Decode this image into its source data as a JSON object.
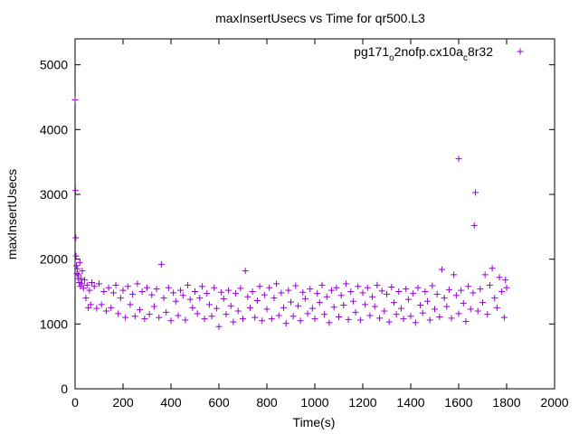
{
  "chart_data": {
    "type": "scatter",
    "title": "maxInsertUsecs vs Time for qr500.L3",
    "xlabel": "Time(s)",
    "ylabel": "maxInsertUsecs",
    "xlim": [
      0,
      2000
    ],
    "ylim": [
      0,
      5400
    ],
    "x_ticks": [
      "0",
      "200",
      "400",
      "600",
      "800",
      "1000",
      "1200",
      "1400",
      "1600",
      "1800",
      "2000"
    ],
    "y_ticks": [
      "0",
      "1000",
      "2000",
      "3000",
      "4000",
      "5000"
    ],
    "x_tick_values": [
      0,
      200,
      400,
      600,
      800,
      1000,
      1200,
      1400,
      1600,
      1800,
      2000
    ],
    "y_tick_values": [
      0,
      1000,
      2000,
      3000,
      4000,
      5000
    ],
    "grid": false,
    "legend_position": "top-right",
    "marker": "+",
    "series": [
      {
        "legend_main": "pg171",
        "legend_sub1": "o",
        "legend_mid": "2nofp.cx10a",
        "legend_sub2": "c",
        "legend_end": "8r32",
        "color": "#9400d3",
        "points": [
          [
            0,
            4460
          ],
          [
            2,
            3060
          ],
          [
            3,
            2330
          ],
          [
            4,
            2050
          ],
          [
            6,
            1900
          ],
          [
            8,
            1780
          ],
          [
            10,
            1850
          ],
          [
            12,
            1700
          ],
          [
            15,
            1760
          ],
          [
            18,
            1640
          ],
          [
            20,
            1950
          ],
          [
            22,
            1580
          ],
          [
            25,
            1700
          ],
          [
            28,
            1620
          ],
          [
            30,
            1820
          ],
          [
            35,
            1550
          ],
          [
            40,
            1680
          ],
          [
            45,
            1400
          ],
          [
            50,
            1600
          ],
          [
            55,
            1250
          ],
          [
            60,
            1520
          ],
          [
            65,
            1300
          ],
          [
            70,
            1640
          ],
          [
            80,
            1580
          ],
          [
            90,
            1240
          ],
          [
            100,
            1620
          ],
          [
            110,
            1300
          ],
          [
            120,
            1500
          ],
          [
            130,
            1200
          ],
          [
            140,
            1560
          ],
          [
            150,
            1250
          ],
          [
            160,
            1480
          ],
          [
            170,
            1600
          ],
          [
            180,
            1160
          ],
          [
            190,
            1400
          ],
          [
            200,
            1520
          ],
          [
            210,
            1100
          ],
          [
            220,
            1580
          ],
          [
            230,
            1300
          ],
          [
            240,
            1460
          ],
          [
            250,
            1120
          ],
          [
            260,
            1620
          ],
          [
            270,
            1220
          ],
          [
            280,
            1500
          ],
          [
            290,
            1080
          ],
          [
            300,
            1560
          ],
          [
            310,
            1150
          ],
          [
            320,
            1450
          ],
          [
            330,
            1270
          ],
          [
            340,
            1540
          ],
          [
            350,
            1100
          ],
          [
            360,
            1920
          ],
          [
            370,
            1400
          ],
          [
            380,
            1180
          ],
          [
            390,
            1560
          ],
          [
            400,
            1050
          ],
          [
            410,
            1480
          ],
          [
            420,
            1350
          ],
          [
            430,
            1130
          ],
          [
            440,
            1520
          ],
          [
            450,
            1440
          ],
          [
            460,
            1060
          ],
          [
            470,
            1600
          ],
          [
            480,
            1380
          ],
          [
            490,
            1250
          ],
          [
            500,
            1500
          ],
          [
            510,
            1160
          ],
          [
            520,
            1400
          ],
          [
            530,
            1580
          ],
          [
            540,
            1080
          ],
          [
            550,
            1470
          ],
          [
            560,
            1300
          ],
          [
            570,
            1120
          ],
          [
            580,
            1560
          ],
          [
            590,
            1240
          ],
          [
            600,
            960
          ],
          [
            610,
            1490
          ],
          [
            620,
            1390
          ],
          [
            630,
            1150
          ],
          [
            640,
            1520
          ],
          [
            650,
            1280
          ],
          [
            660,
            1030
          ],
          [
            670,
            1470
          ],
          [
            680,
            1200
          ],
          [
            690,
            1550
          ],
          [
            700,
            1080
          ],
          [
            710,
            1820
          ],
          [
            720,
            1420
          ],
          [
            730,
            1250
          ],
          [
            740,
            1500
          ],
          [
            750,
            1100
          ],
          [
            760,
            1360
          ],
          [
            770,
            1580
          ],
          [
            780,
            1050
          ],
          [
            790,
            1450
          ],
          [
            800,
            1230
          ],
          [
            810,
            1560
          ],
          [
            820,
            1080
          ],
          [
            830,
            1400
          ],
          [
            840,
            1620
          ],
          [
            850,
            1130
          ],
          [
            860,
            1480
          ],
          [
            870,
            1250
          ],
          [
            880,
            1010
          ],
          [
            890,
            1520
          ],
          [
            900,
            1340
          ],
          [
            910,
            1120
          ],
          [
            920,
            1590
          ],
          [
            930,
            1280
          ],
          [
            940,
            1050
          ],
          [
            950,
            1490
          ],
          [
            960,
            1390
          ],
          [
            970,
            1160
          ],
          [
            980,
            1540
          ],
          [
            990,
            1240
          ],
          [
            1000,
            1080
          ],
          [
            1010,
            1470
          ],
          [
            1020,
            1330
          ],
          [
            1030,
            1600
          ],
          [
            1040,
            1150
          ],
          [
            1050,
            1420
          ],
          [
            1060,
            1020
          ],
          [
            1070,
            1520
          ],
          [
            1080,
            1260
          ],
          [
            1090,
            1560
          ],
          [
            1100,
            1110
          ],
          [
            1110,
            1440
          ],
          [
            1120,
            1290
          ],
          [
            1130,
            1620
          ],
          [
            1140,
            1070
          ],
          [
            1150,
            1500
          ],
          [
            1160,
            1350
          ],
          [
            1170,
            1180
          ],
          [
            1180,
            1580
          ],
          [
            1190,
            1060
          ],
          [
            1200,
            1480
          ],
          [
            1210,
            1300
          ],
          [
            1220,
            1560
          ],
          [
            1230,
            1130
          ],
          [
            1240,
            1420
          ],
          [
            1250,
            1270
          ],
          [
            1260,
            1600
          ],
          [
            1270,
            1090
          ],
          [
            1280,
            1510
          ],
          [
            1290,
            1200
          ],
          [
            1300,
            1460
          ],
          [
            1310,
            1030
          ],
          [
            1320,
            1570
          ],
          [
            1330,
            1330
          ],
          [
            1340,
            1150
          ],
          [
            1350,
            1500
          ],
          [
            1360,
            1240
          ],
          [
            1370,
            1080
          ],
          [
            1380,
            1540
          ],
          [
            1390,
            1380
          ],
          [
            1400,
            1120
          ],
          [
            1410,
            1470
          ],
          [
            1420,
            1020
          ],
          [
            1430,
            1560
          ],
          [
            1440,
            1290
          ],
          [
            1450,
            1170
          ],
          [
            1460,
            1500
          ],
          [
            1470,
            1350
          ],
          [
            1480,
            1060
          ],
          [
            1490,
            1590
          ],
          [
            1500,
            1230
          ],
          [
            1510,
            1460
          ],
          [
            1520,
            1110
          ],
          [
            1530,
            1840
          ],
          [
            1540,
            1400
          ],
          [
            1550,
            1270
          ],
          [
            1560,
            1530
          ],
          [
            1570,
            1090
          ],
          [
            1580,
            1760
          ],
          [
            1590,
            1440
          ],
          [
            1600,
            3550
          ],
          [
            1600,
            1160
          ],
          [
            1610,
            1520
          ],
          [
            1620,
            1320
          ],
          [
            1630,
            1040
          ],
          [
            1640,
            1580
          ],
          [
            1650,
            1230
          ],
          [
            1660,
            1480
          ],
          [
            1670,
            3030
          ],
          [
            1665,
            2520
          ],
          [
            1680,
            1200
          ],
          [
            1690,
            1540
          ],
          [
            1700,
            1330
          ],
          [
            1710,
            1760
          ],
          [
            1720,
            1150
          ],
          [
            1730,
            1600
          ],
          [
            1740,
            1860
          ],
          [
            1750,
            1400
          ],
          [
            1760,
            1250
          ],
          [
            1770,
            1720
          ],
          [
            1780,
            1500
          ],
          [
            1790,
            1100
          ],
          [
            1795,
            1680
          ],
          [
            1800,
            1560
          ]
        ]
      }
    ]
  }
}
